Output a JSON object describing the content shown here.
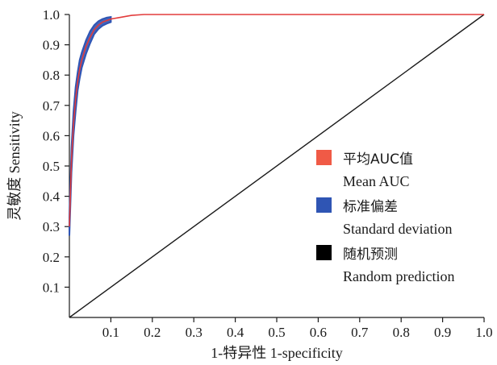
{
  "chart_data": {
    "type": "line",
    "title": "",
    "xlabel": "1-特异性 1-specificity",
    "ylabel": "灵敏度 Sensitivity",
    "xlim": [
      0,
      1
    ],
    "ylim": [
      0,
      1
    ],
    "x_ticks": [
      "0.1",
      "0.2",
      "0.3",
      "0.4",
      "0.5",
      "0.6",
      "0.7",
      "0.8",
      "0.9",
      "1.0"
    ],
    "y_ticks": [
      "0.1",
      "0.2",
      "0.3",
      "0.4",
      "0.5",
      "0.6",
      "0.7",
      "0.8",
      "0.9",
      "1.0"
    ],
    "grid": false,
    "legend_position": "right",
    "legend": [
      {
        "label_zh": "平均AUC值",
        "label_en": "Mean AUC",
        "color": "#f05a46"
      },
      {
        "label_zh": "标准偏差",
        "label_en": "Standard deviation",
        "color": "#2f55b4"
      },
      {
        "label_zh": "随机预测",
        "label_en": "Random prediction",
        "color": "#000000"
      }
    ],
    "series": [
      {
        "name": "Mean AUC",
        "color": "#e23b3b",
        "points": [
          [
            0.0,
            0.3
          ],
          [
            0.005,
            0.52
          ],
          [
            0.01,
            0.64
          ],
          [
            0.015,
            0.72
          ],
          [
            0.02,
            0.78
          ],
          [
            0.025,
            0.82
          ],
          [
            0.03,
            0.85
          ],
          [
            0.04,
            0.895
          ],
          [
            0.05,
            0.925
          ],
          [
            0.06,
            0.95
          ],
          [
            0.07,
            0.965
          ],
          [
            0.08,
            0.975
          ],
          [
            0.09,
            0.98
          ],
          [
            0.1,
            0.985
          ],
          [
            0.12,
            0.99
          ],
          [
            0.15,
            0.997
          ],
          [
            0.18,
            1.0
          ],
          [
            0.5,
            1.0
          ],
          [
            1.0,
            1.0
          ]
        ]
      },
      {
        "name": "Standard deviation",
        "color": "#2f55b4",
        "upper": [
          [
            0.0,
            0.33
          ],
          [
            0.005,
            0.56
          ],
          [
            0.01,
            0.68
          ],
          [
            0.015,
            0.76
          ],
          [
            0.02,
            0.81
          ],
          [
            0.025,
            0.85
          ],
          [
            0.03,
            0.875
          ],
          [
            0.04,
            0.915
          ],
          [
            0.05,
            0.945
          ],
          [
            0.06,
            0.965
          ],
          [
            0.07,
            0.978
          ],
          [
            0.08,
            0.985
          ],
          [
            0.09,
            0.99
          ],
          [
            0.1,
            0.992
          ]
        ],
        "lower": [
          [
            0.0,
            0.27
          ],
          [
            0.005,
            0.48
          ],
          [
            0.01,
            0.6
          ],
          [
            0.015,
            0.68
          ],
          [
            0.02,
            0.75
          ],
          [
            0.025,
            0.79
          ],
          [
            0.03,
            0.825
          ],
          [
            0.04,
            0.87
          ],
          [
            0.05,
            0.905
          ],
          [
            0.06,
            0.935
          ],
          [
            0.07,
            0.952
          ],
          [
            0.08,
            0.963
          ],
          [
            0.09,
            0.97
          ],
          [
            0.1,
            0.975
          ]
        ]
      },
      {
        "name": "Random prediction",
        "color": "#1a1a1a",
        "points": [
          [
            0,
            0
          ],
          [
            1,
            1
          ]
        ]
      }
    ]
  }
}
